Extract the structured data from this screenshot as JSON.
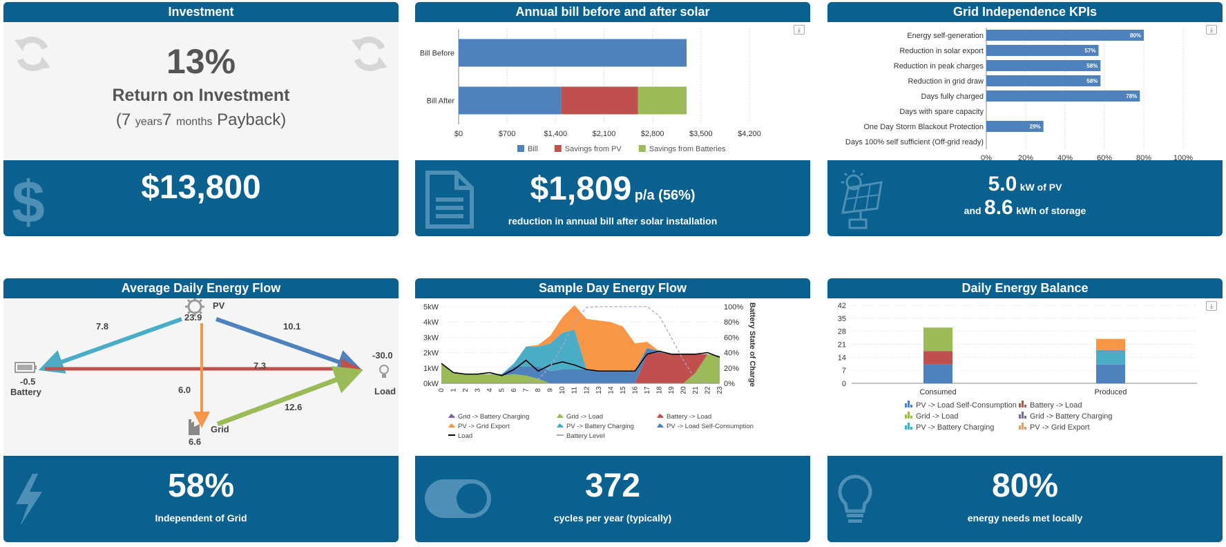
{
  "colors": {
    "header_blue": "#0a6190",
    "bill": "#4f81bd",
    "savings_pv": "#c0504d",
    "savings_batt": "#9bbb59",
    "pv_to_batt": "#4bacc6",
    "pv_export": "#f79646",
    "grid_to_batt": "#8064a2"
  },
  "investment": {
    "title": "Investment",
    "roi_value": "13%",
    "roi_label": "Return on Investment",
    "payback_open": "(",
    "payback_years": "7",
    "payback_years_unit": "years",
    "payback_months": "7",
    "payback_months_unit": "months",
    "payback_label": "Payback)",
    "cost": "$13,800",
    "icon": "dollar-icon"
  },
  "annual_bill": {
    "title": "Annual bill before and after solar",
    "saving_value": "$1,809",
    "saving_unit": "p/a (56%)",
    "saving_caption": "reduction in annual bill after solar installation",
    "icon": "document-icon",
    "export_icon": "export-icon"
  },
  "kpis": {
    "title": "Grid Independence KPIs",
    "pv_value": "5.0",
    "pv_unit": "kW of PV",
    "and_label": "and",
    "storage_value": "8.6",
    "storage_unit": "kWh of storage",
    "icon": "solar-panel-icon"
  },
  "avg_flow": {
    "title": "Average Daily Energy Flow",
    "pv_label": "PV",
    "pv_value": "23.9",
    "battery_label": "Battery",
    "battery_value": "-0.5",
    "load_label": "Load",
    "load_value": "-30.0",
    "grid_label": "Grid",
    "grid_value": "6.6",
    "flow_pv_battery": "7.8",
    "flow_pv_load": "10.1",
    "flow_battery_load": "7.3",
    "flow_pv_grid": "6.0",
    "flow_grid_load": "12.6",
    "independent_value": "58%",
    "independent_label": "Independent of Grid",
    "icon": "lightning-icon"
  },
  "sample_day": {
    "title": "Sample Day Energy Flow",
    "cycles_value": "372",
    "cycles_label": "cycles per year (typically)",
    "icon": "toggle-icon"
  },
  "balance": {
    "title": "Daily Energy Balance",
    "local_value": "80%",
    "local_label": "energy needs met locally",
    "icon": "lightbulb-icon"
  },
  "chart_data": [
    {
      "id": "annual_bill",
      "type": "bar",
      "orientation": "horizontal",
      "stacked": true,
      "categories": [
        "Bill Before",
        "Bill After"
      ],
      "series": [
        {
          "name": "Bill",
          "values": [
            3292,
            1483
          ]
        },
        {
          "name": "Savings from PV",
          "values": [
            0,
            1109
          ]
        },
        {
          "name": "Savings from Batteries",
          "values": [
            0,
            700
          ]
        }
      ],
      "xlim": [
        0,
        4200
      ],
      "xticks": [
        "$0",
        "$700",
        "$1,400",
        "$2,100",
        "$2,800",
        "$3,500",
        "$4,200"
      ],
      "legend": "bottom"
    },
    {
      "id": "kpis",
      "type": "bar",
      "orientation": "horizontal",
      "categories": [
        "Energy self-generation",
        "Reduction in solar export",
        "Reduction in peak charges",
        "Reduction in grid draw",
        "Days fully charged",
        "Days with spare capacity",
        "One Day Storm Blackout Protection",
        "Days 100% self sufficient (Off-grid ready)"
      ],
      "values": [
        80,
        57,
        58,
        58,
        78,
        0,
        29,
        0
      ],
      "labels": [
        "80%",
        "57%",
        "58%",
        "58%",
        "78%",
        "",
        "29%",
        ""
      ],
      "xlim": [
        0,
        100
      ],
      "xticks": [
        "0%",
        "20%",
        "40%",
        "60%",
        "80%",
        "100%"
      ]
    },
    {
      "id": "sample_day",
      "type": "area",
      "stacked": true,
      "x": [
        0,
        1,
        2,
        3,
        4,
        5,
        6,
        7,
        8,
        9,
        10,
        11,
        12,
        13,
        14,
        15,
        16,
        17,
        18,
        19,
        20,
        21,
        22,
        23
      ],
      "series": [
        {
          "name": "Grid -> Battery Charging",
          "values": [
            0,
            0,
            0,
            0,
            0,
            0,
            0,
            0,
            0,
            0,
            0,
            0,
            0,
            0,
            0,
            0,
            0,
            0,
            0,
            0,
            0,
            0,
            0,
            0
          ]
        },
        {
          "name": "Grid -> Load",
          "values": [
            1.3,
            0.7,
            0.6,
            0.6,
            0.6,
            0.5,
            0.6,
            0.5,
            0.3,
            0,
            0,
            0,
            0,
            0,
            0,
            0,
            0,
            0,
            0,
            0,
            0,
            0.7,
            1.9,
            1.8
          ]
        },
        {
          "name": "Battery -> Load",
          "values": [
            0,
            0,
            0,
            0,
            0,
            0,
            0,
            0,
            0,
            0,
            0,
            0,
            0,
            0,
            0,
            0,
            0,
            1.9,
            2.0,
            1.9,
            1.9,
            1.2,
            0,
            0
          ]
        },
        {
          "name": "PV -> Grid Export",
          "values": [
            0,
            0,
            0,
            0,
            0,
            0,
            0,
            0,
            0.1,
            0.5,
            1.0,
            1.6,
            3.3,
            3.3,
            3.2,
            2.9,
            1.8,
            0.4,
            0,
            0,
            0,
            0,
            0,
            0
          ]
        },
        {
          "name": "PV -> Battery Charging",
          "values": [
            0,
            0,
            0,
            0,
            0,
            0,
            0.2,
            1.3,
            1.3,
            1.8,
            2.4,
            2.6,
            0,
            0,
            0,
            0,
            0,
            0,
            0,
            0,
            0,
            0,
            0,
            0
          ]
        },
        {
          "name": "PV -> Load Self-Consumption",
          "values": [
            0,
            0,
            0,
            0,
            0,
            0.1,
            0.5,
            0.6,
            0.8,
            0.8,
            0.9,
            0.9,
            0.9,
            0.8,
            0.8,
            0.8,
            0.8,
            0.4,
            0.1,
            0,
            0,
            0,
            0,
            0
          ]
        },
        {
          "name": "Load",
          "values": [
            1.3,
            0.7,
            0.6,
            0.6,
            0.7,
            0.5,
            0.9,
            1.5,
            0.8,
            1.2,
            1.4,
            1.2,
            0.9,
            0.8,
            0.8,
            0.8,
            0.8,
            1.9,
            2.1,
            1.9,
            1.9,
            1.9,
            2.0,
            1.7
          ]
        },
        {
          "name": "Battery Level",
          "values": [
            0,
            0,
            0,
            0,
            0,
            0,
            0,
            0,
            5,
            22,
            48,
            80,
            99,
            100,
            100,
            100,
            100,
            100,
            88,
            60,
            30,
            5,
            0,
            0
          ]
        }
      ],
      "ylim": [
        0,
        5
      ],
      "yticks": [
        "0kW",
        "1kW",
        "2kW",
        "3kW",
        "4kW",
        "5kW"
      ],
      "y2lim": [
        0,
        100
      ],
      "y2ticks": [
        "0%",
        "20%",
        "40%",
        "60%",
        "80%",
        "100%"
      ],
      "y2label": "Battery State of Charge",
      "legend": "bottom"
    },
    {
      "id": "balance",
      "type": "bar",
      "stacked": true,
      "categories": [
        "Consumed",
        "Produced"
      ],
      "series": [
        {
          "name": "PV -> Load Self-Consumption",
          "values": [
            10.1,
            10.1
          ]
        },
        {
          "name": "Battery -> Load",
          "values": [
            7.3,
            0
          ]
        },
        {
          "name": "Grid -> Load",
          "values": [
            12.6,
            0
          ]
        },
        {
          "name": "Grid -> Battery Charging",
          "values": [
            0,
            0
          ]
        },
        {
          "name": "PV -> Battery Charging",
          "values": [
            0,
            7.8
          ]
        },
        {
          "name": "PV -> Grid Export",
          "values": [
            0,
            6.0
          ]
        }
      ],
      "ylim": [
        0,
        42
      ],
      "yticks": [
        "0",
        "7",
        "14",
        "21",
        "28",
        "35",
        "42"
      ],
      "legend": "bottom"
    }
  ]
}
